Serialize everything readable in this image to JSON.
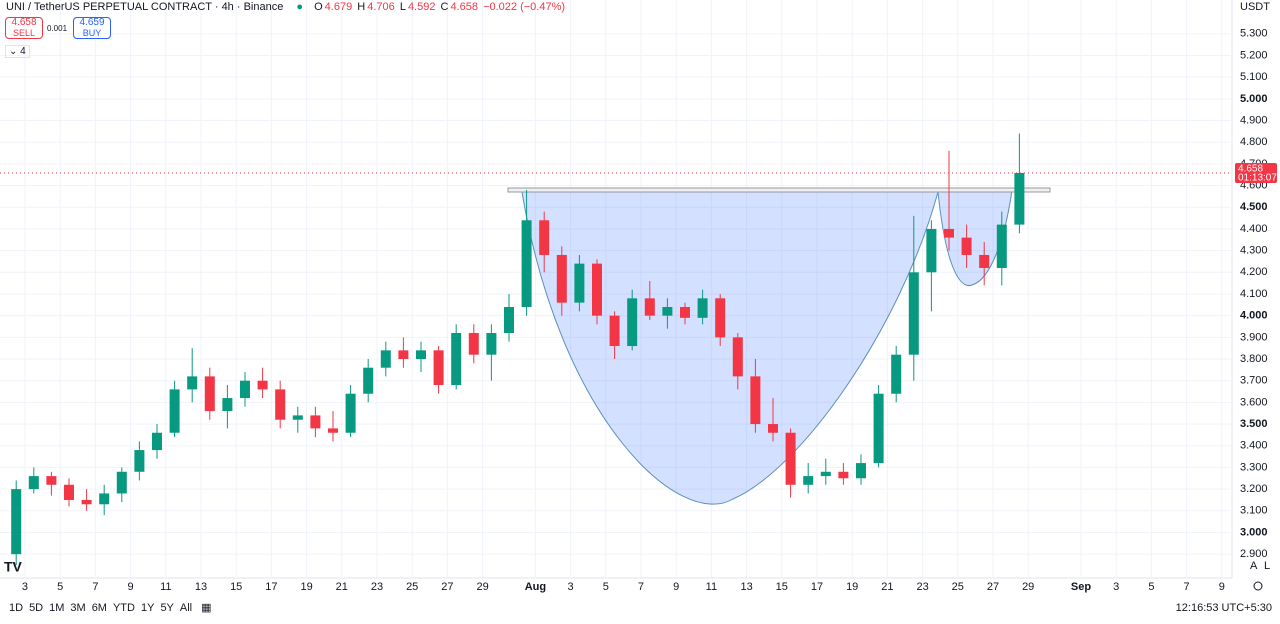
{
  "header": {
    "symbol": "UNI / TetherUS PERPETUAL CONTRACT · 4h · Binance",
    "o_label": "O",
    "o": "4.679",
    "h_label": "H",
    "h": "4.706",
    "l_label": "L",
    "l": "4.592",
    "c_label": "C",
    "c": "4.658",
    "change": "−0.022 (−0.47%)"
  },
  "trade": {
    "sell_price": "4.658",
    "sell": "SELL",
    "spread": "0.001",
    "buy_price": "4.659",
    "buy": "BUY",
    "indicators": "4"
  },
  "currency": "USDT",
  "toolbar": {
    "ranges": [
      "1D",
      "5D",
      "1M",
      "3M",
      "6M",
      "YTD",
      "1Y",
      "5Y",
      "All"
    ],
    "clock": "12:16:53 UTC+5:30",
    "auto": "A",
    "log": "L"
  },
  "chart_data": {
    "type": "candlestick",
    "up_color": "#089981",
    "down_color": "#f23645",
    "x": [
      1.5,
      2.5,
      3.5,
      4.5,
      5.5,
      6.5,
      7.5,
      8.5,
      9.5,
      10.5,
      11.5,
      12.5,
      13.5,
      14.5,
      15.5,
      16.5,
      17.5,
      18.5,
      19.5,
      20.5,
      21.5,
      22.5,
      23.5,
      24.5,
      25.5,
      26.5,
      27.5,
      28.5,
      29.5,
      30.5,
      31.5,
      32.5,
      33.5,
      34.5,
      35.5,
      36.5,
      37.5,
      38.5,
      39.5,
      40.5,
      41.5,
      42.5,
      43.5,
      44.5,
      45.5,
      46.5,
      47.5,
      48.5,
      49.5,
      50.5,
      51.5,
      52.5,
      53.5,
      54.5,
      55.5,
      56.5,
      57.5,
      58.5
    ],
    "open": [
      2.9,
      3.2,
      3.26,
      3.22,
      3.15,
      3.13,
      3.18,
      3.28,
      3.38,
      3.46,
      3.66,
      3.72,
      3.56,
      3.62,
      3.7,
      3.66,
      3.52,
      3.54,
      3.48,
      3.46,
      3.64,
      3.76,
      3.84,
      3.8,
      3.84,
      3.68,
      3.92,
      3.82,
      3.92,
      4.04,
      4.44,
      4.28,
      4.06,
      4.24,
      4.0,
      3.86,
      4.08,
      4.0,
      4.04,
      3.99,
      4.08,
      3.9,
      3.72,
      3.5,
      3.46,
      3.22,
      3.26,
      3.28,
      3.25,
      3.32,
      3.64,
      3.82,
      4.2,
      4.4,
      4.36,
      4.28,
      4.22,
      4.42
    ],
    "high": [
      3.24,
      3.3,
      3.28,
      3.25,
      3.2,
      3.22,
      3.3,
      3.42,
      3.5,
      3.7,
      3.85,
      3.76,
      3.68,
      3.74,
      3.76,
      3.7,
      3.58,
      3.58,
      3.56,
      3.68,
      3.8,
      3.88,
      3.9,
      3.88,
      3.86,
      3.96,
      3.96,
      3.96,
      4.1,
      4.58,
      4.48,
      4.32,
      4.28,
      4.26,
      4.02,
      4.12,
      4.16,
      4.08,
      4.06,
      4.12,
      4.1,
      3.92,
      3.8,
      3.62,
      3.48,
      3.32,
      3.34,
      3.32,
      3.36,
      3.68,
      3.86,
      4.46,
      4.44,
      4.76,
      4.42,
      4.34,
      4.48,
      4.84
    ],
    "low": [
      2.85,
      3.18,
      3.17,
      3.12,
      3.1,
      3.08,
      3.14,
      3.24,
      3.34,
      3.44,
      3.6,
      3.52,
      3.48,
      3.58,
      3.62,
      3.48,
      3.46,
      3.44,
      3.42,
      3.44,
      3.6,
      3.72,
      3.76,
      3.74,
      3.64,
      3.66,
      3.78,
      3.7,
      3.88,
      4.0,
      4.2,
      4.0,
      4.02,
      3.96,
      3.8,
      3.84,
      3.98,
      3.94,
      3.96,
      3.96,
      3.86,
      3.66,
      3.46,
      3.42,
      3.16,
      3.18,
      3.22,
      3.22,
      3.22,
      3.3,
      3.6,
      3.7,
      4.02,
      4.3,
      4.22,
      4.14,
      4.14,
      4.38
    ],
    "close": [
      3.2,
      3.26,
      3.22,
      3.15,
      3.13,
      3.18,
      3.28,
      3.38,
      3.46,
      3.66,
      3.72,
      3.56,
      3.62,
      3.7,
      3.66,
      3.52,
      3.54,
      3.48,
      3.46,
      3.64,
      3.76,
      3.84,
      3.8,
      3.84,
      3.68,
      3.92,
      3.82,
      3.92,
      4.04,
      4.44,
      4.28,
      4.06,
      4.24,
      4.0,
      3.86,
      4.08,
      4.0,
      4.04,
      3.99,
      4.08,
      3.9,
      3.72,
      3.5,
      3.46,
      3.22,
      3.26,
      3.28,
      3.25,
      3.32,
      3.64,
      3.82,
      4.2,
      4.4,
      4.36,
      4.28,
      4.22,
      4.42,
      4.658
    ],
    "xlim": [
      0.58,
      70.58
    ],
    "xticks": [
      {
        "value": 2,
        "label": "3"
      },
      {
        "value": 4,
        "label": "5"
      },
      {
        "value": 6,
        "label": "7"
      },
      {
        "value": 8,
        "label": "9"
      },
      {
        "value": 10,
        "label": "11"
      },
      {
        "value": 12,
        "label": "13"
      },
      {
        "value": 14,
        "label": "15"
      },
      {
        "value": 16,
        "label": "17"
      },
      {
        "value": 18,
        "label": "19"
      },
      {
        "value": 20,
        "label": "21"
      },
      {
        "value": 22,
        "label": "23"
      },
      {
        "value": 24,
        "label": "25"
      },
      {
        "value": 26,
        "label": "27"
      },
      {
        "value": 28,
        "label": "29"
      },
      {
        "value": 31,
        "label": "Aug"
      },
      {
        "value": 33,
        "label": "3"
      },
      {
        "value": 35,
        "label": "5"
      },
      {
        "value": 37,
        "label": "7"
      },
      {
        "value": 39,
        "label": "9"
      },
      {
        "value": 41,
        "label": "11"
      },
      {
        "value": 43,
        "label": "13"
      },
      {
        "value": 45,
        "label": "15"
      },
      {
        "value": 47,
        "label": "17"
      },
      {
        "value": 49,
        "label": "19"
      },
      {
        "value": 51,
        "label": "21"
      },
      {
        "value": 53,
        "label": "23"
      },
      {
        "value": 55,
        "label": "25"
      },
      {
        "value": 57,
        "label": "27"
      },
      {
        "value": 59,
        "label": "29"
      },
      {
        "value": 62,
        "label": "Sep"
      },
      {
        "value": 64,
        "label": "3"
      },
      {
        "value": 66,
        "label": "5"
      },
      {
        "value": 68,
        "label": "7"
      },
      {
        "value": 70,
        "label": "9"
      }
    ],
    "ylim": [
      2.79,
      5.456
    ],
    "yticks": [
      {
        "value": 2.9,
        "label": "2.900"
      },
      {
        "value": 3.0,
        "label": "3.000"
      },
      {
        "value": 3.1,
        "label": "3.100"
      },
      {
        "value": 3.2,
        "label": "3.200"
      },
      {
        "value": 3.3,
        "label": "3.300"
      },
      {
        "value": 3.4,
        "label": "3.400"
      },
      {
        "value": 3.5,
        "label": "3.500"
      },
      {
        "value": 3.6,
        "label": "3.600"
      },
      {
        "value": 3.7,
        "label": "3.700"
      },
      {
        "value": 3.8,
        "label": "3.800"
      },
      {
        "value": 3.9,
        "label": "3.900"
      },
      {
        "value": 4.0,
        "label": "4.000"
      },
      {
        "value": 4.1,
        "label": "4.100"
      },
      {
        "value": 4.2,
        "label": "4.200"
      },
      {
        "value": 4.3,
        "label": "4.300"
      },
      {
        "value": 4.4,
        "label": "4.400"
      },
      {
        "value": 4.5,
        "label": "4.500"
      },
      {
        "value": 4.6,
        "label": "4.600"
      },
      {
        "value": 4.7,
        "label": "4.700"
      },
      {
        "value": 4.8,
        "label": "4.800"
      },
      {
        "value": 4.9,
        "label": "4.900"
      },
      {
        "value": 5.0,
        "label": "5.000"
      },
      {
        "value": 5.1,
        "label": "5.100"
      },
      {
        "value": 5.2,
        "label": "5.200"
      },
      {
        "value": 5.3,
        "label": "5.300"
      }
    ],
    "last_price": {
      "value": 4.658,
      "label": "4.658"
    },
    "countdown": "01:13:07",
    "grid": true
  }
}
